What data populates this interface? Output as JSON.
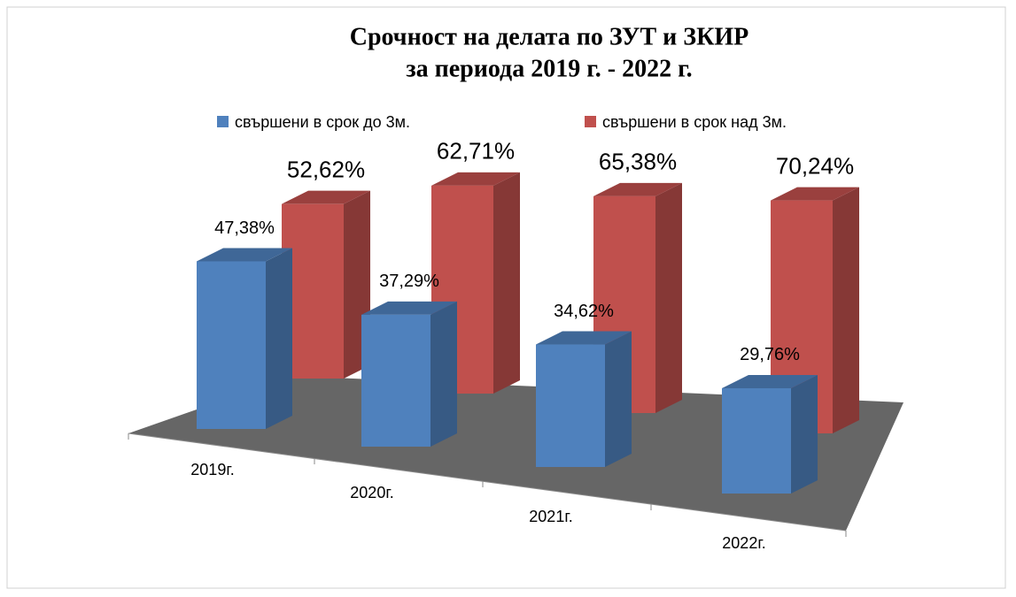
{
  "chart_data": {
    "type": "bar3d",
    "title": [
      "Срочност на делата  по ЗУТ и ЗКИР",
      "за периода 2019 г. - 2022 г."
    ],
    "categories": [
      "2019г.",
      "2020г.",
      "2021г.",
      "2022г."
    ],
    "series": [
      {
        "name": "свършени в срок до 3м.",
        "color": "#4f81bd",
        "values": [
          47.38,
          37.29,
          34.62,
          29.76
        ],
        "value_labels": [
          "47,38%",
          "37,29%",
          "34,62%",
          "29,76%"
        ]
      },
      {
        "name": "свършени в срок над 3м.",
        "color": "#c0504d",
        "values": [
          52.62,
          62.71,
          65.38,
          70.24
        ],
        "value_labels": [
          "52,62%",
          "62,71%",
          "65,38%",
          "70,24%"
        ]
      }
    ],
    "legend": "top"
  }
}
